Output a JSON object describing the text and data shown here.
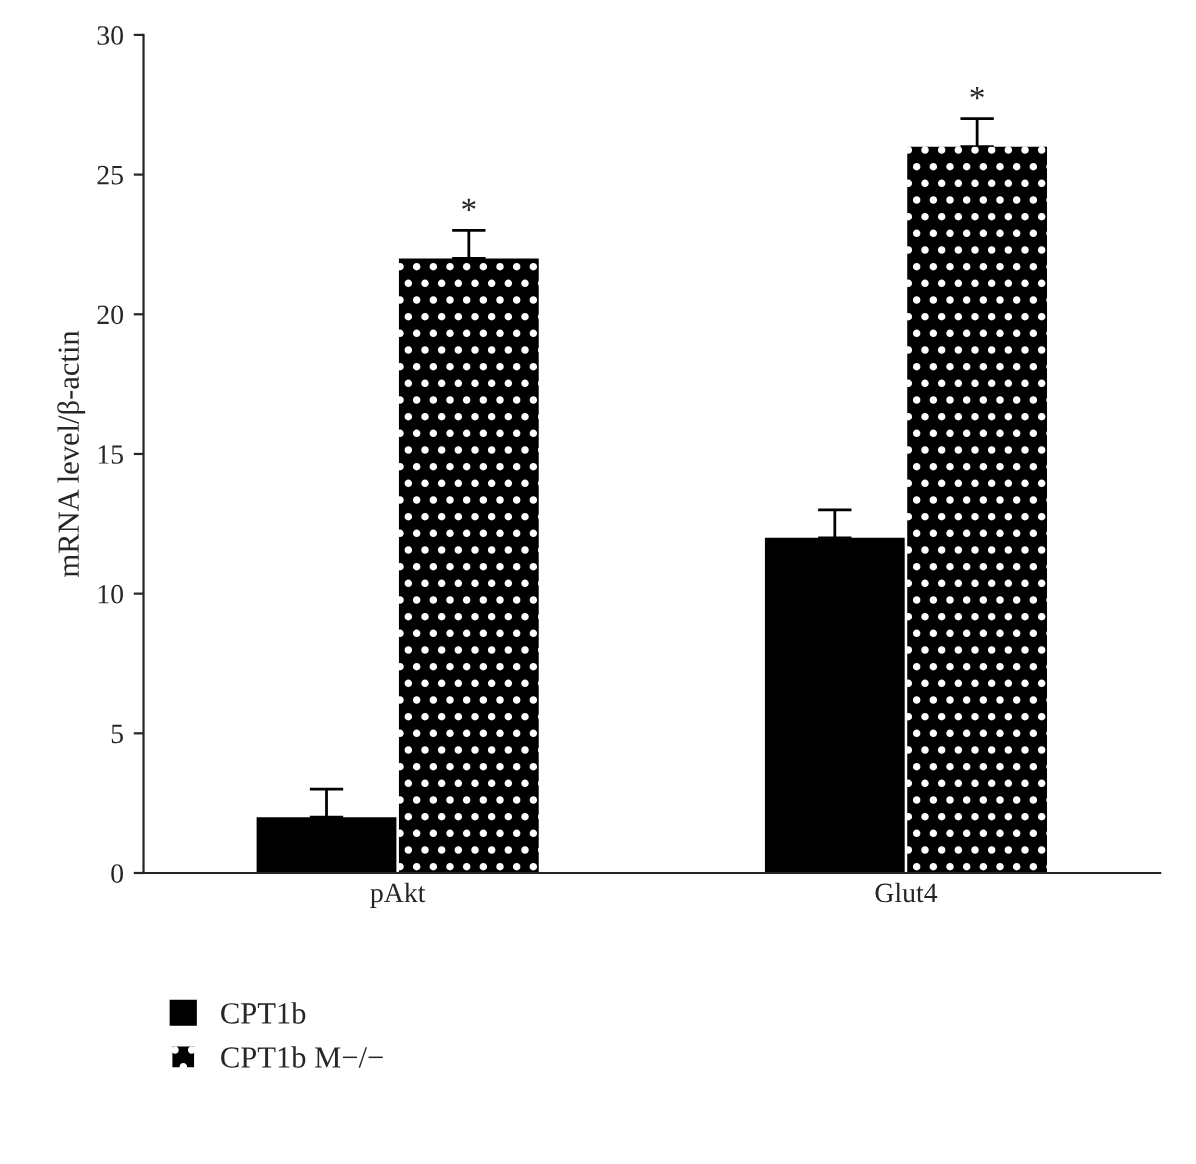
{
  "chart_data": {
    "type": "bar",
    "ylabel": "mRNA level/β-actin",
    "categories": [
      "pAkt",
      "Glut4"
    ],
    "series": [
      {
        "name": "CPT1b",
        "color": "#000000",
        "values": [
          2,
          12
        ],
        "errors": [
          [
            2,
            3
          ],
          [
            12,
            13
          ]
        ]
      },
      {
        "name": "CPT1b M−/−",
        "color": "#000000",
        "values": [
          22,
          26
        ],
        "errors": [
          [
            22,
            23
          ],
          [
            26,
            27
          ]
        ]
      }
    ],
    "annotations": [
      "*",
      "*"
    ],
    "ylim": [
      0,
      30
    ],
    "yticks": [
      0,
      5,
      10,
      15,
      20,
      25,
      30
    ],
    "grid": false,
    "legend": "bottom left"
  }
}
